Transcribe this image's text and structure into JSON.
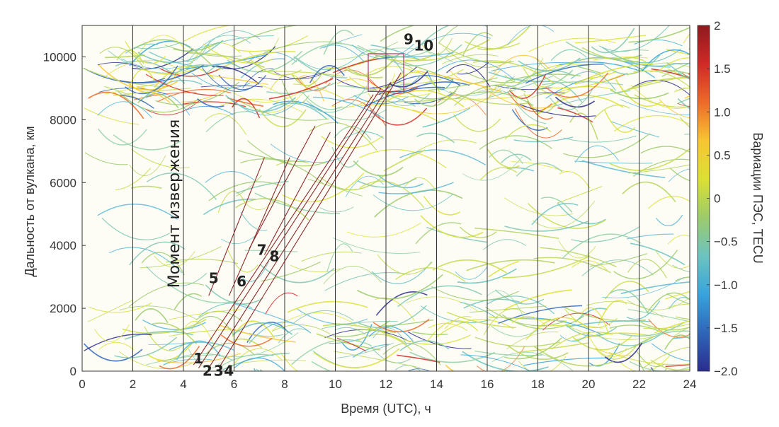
{
  "chart_data": {
    "type": "scatter",
    "xlabel": "Время (UTC), ч",
    "ylabel": "Дальность от вулкана, км",
    "xlim": [
      0,
      24
    ],
    "ylim": [
      0,
      11000
    ],
    "xticks": [
      "0",
      "2",
      "4",
      "6",
      "8",
      "10",
      "12",
      "14",
      "16",
      "18",
      "20",
      "22",
      "24"
    ],
    "yticks": [
      "0",
      "2000",
      "4000",
      "6000",
      "8000",
      "10000"
    ],
    "vertical_lines_hours": [
      2,
      4,
      6,
      8,
      10,
      12,
      14,
      16,
      18,
      20,
      22
    ],
    "eruption_label": "Момент извержения",
    "eruption_time_h": 4,
    "colorbar": {
      "label": "Вариации ПЭС, TECU",
      "range": [
        -2,
        2
      ],
      "ticks": [
        "2",
        "1.5",
        "1.0",
        "0.5",
        "0",
        "−0.5",
        "−1.0",
        "−1.5",
        "−2.0"
      ],
      "colormap": [
        "#2b2d8e",
        "#2f66b8",
        "#39a3dc",
        "#6cc3c0",
        "#9ccb6a",
        "#dbe034",
        "#f8c533",
        "#ec6a2a",
        "#cf2a26",
        "#8e1a1e"
      ]
    },
    "background_bands_km": [
      {
        "range": [
          8300,
          10100
        ],
        "note": "strong variations band"
      },
      {
        "range": [
          0,
          2000
        ],
        "note": "near-source band"
      }
    ],
    "annotations": [
      {
        "text": "1",
        "x": 4.4,
        "y": 250
      },
      {
        "text": "2",
        "x": 4.75,
        "y": -150
      },
      {
        "text": "3",
        "x": 5.2,
        "y": -150
      },
      {
        "text": "4",
        "x": 5.6,
        "y": -150
      },
      {
        "text": "5",
        "x": 5.0,
        "y": 2800
      },
      {
        "text": "6",
        "x": 6.1,
        "y": 2700
      },
      {
        "text": "7",
        "x": 6.9,
        "y": 3700
      },
      {
        "text": "8",
        "x": 7.4,
        "y": 3500
      },
      {
        "text": "9",
        "x": 12.7,
        "y": 10400
      },
      {
        "text": "10",
        "x": 13.1,
        "y": 10200
      }
    ],
    "wave_fronts": [
      {
        "name": "1",
        "x": [
          4.4,
          11.5
        ],
        "y": [
          200,
          8800
        ]
      },
      {
        "name": "2",
        "x": [
          4.6,
          11.8
        ],
        "y": [
          100,
          9000
        ]
      },
      {
        "name": "3",
        "x": [
          5.0,
          12.2
        ],
        "y": [
          100,
          9200
        ]
      },
      {
        "name": "4",
        "x": [
          5.4,
          12.6
        ],
        "y": [
          100,
          9500
        ]
      },
      {
        "name": "5",
        "x": [
          5.0,
          7.2
        ],
        "y": [
          2400,
          6800
        ]
      },
      {
        "name": "6",
        "x": [
          5.8,
          8.2
        ],
        "y": [
          2400,
          6800
        ]
      },
      {
        "name": "7",
        "x": [
          6.6,
          9.2
        ],
        "y": [
          3900,
          7800
        ]
      },
      {
        "name": "8",
        "x": [
          7.2,
          9.8
        ],
        "y": [
          3700,
          7600
        ]
      }
    ],
    "highlight_box": {
      "x": [
        11.3,
        12.7
      ],
      "y": [
        8900,
        10100
      ]
    }
  }
}
